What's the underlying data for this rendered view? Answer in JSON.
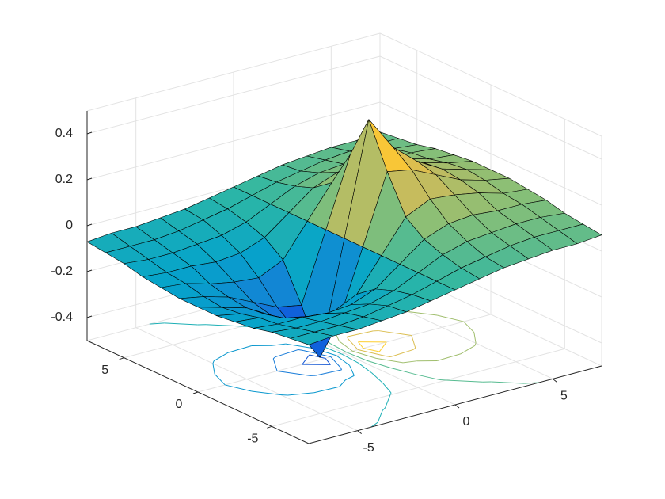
{
  "chart_data": {
    "type": "surface",
    "x": [
      -7.5,
      -6.25,
      -5,
      -3.75,
      -2.5,
      -1.25,
      0,
      1.25,
      2.5,
      3.75,
      5,
      6.25,
      7.5
    ],
    "y": [
      -7.5,
      -6.25,
      -5,
      -3.75,
      -2.5,
      -1.25,
      0,
      1.25,
      2.5,
      3.75,
      5,
      6.25,
      7.5
    ],
    "z": [
      [
        -0.07,
        -0.06,
        -0.06,
        -0.05,
        -0.04,
        -0.02,
        0,
        0.02,
        0.04,
        0.05,
        0.06,
        0.06,
        0.07
      ],
      [
        -0.08,
        -0.08,
        -0.08,
        -0.07,
        -0.05,
        -0.03,
        0,
        0.03,
        0.05,
        0.07,
        0.08,
        0.08,
        0.08
      ],
      [
        -0.09,
        -0.1,
        -0.1,
        -0.09,
        -0.08,
        -0.05,
        0,
        0.05,
        0.08,
        0.09,
        0.1,
        0.1,
        0.09
      ],
      [
        -0.11,
        -0.12,
        -0.12,
        -0.13,
        -0.12,
        -0.08,
        0,
        0.08,
        0.12,
        0.13,
        0.12,
        0.12,
        0.11
      ],
      [
        -0.12,
        -0.13,
        -0.16,
        -0.18,
        -0.19,
        -0.14,
        0,
        0.14,
        0.19,
        0.18,
        0.16,
        0.13,
        0.12
      ],
      [
        -0.13,
        -0.15,
        -0.18,
        -0.23,
        -0.28,
        -0.3,
        0,
        0.3,
        0.28,
        0.23,
        0.18,
        0.15,
        0.13
      ],
      [
        -0.13,
        -0.16,
        -0.19,
        -0.25,
        -0.34,
        -0.49,
        0,
        0.49,
        0.34,
        0.25,
        0.19,
        0.16,
        0.13
      ],
      [
        -0.13,
        -0.15,
        -0.18,
        -0.23,
        -0.28,
        -0.3,
        0,
        0.3,
        0.28,
        0.23,
        0.18,
        0.15,
        0.13
      ],
      [
        -0.12,
        -0.13,
        -0.16,
        -0.18,
        -0.19,
        -0.14,
        0,
        0.14,
        0.19,
        0.18,
        0.16,
        0.13,
        0.12
      ],
      [
        -0.11,
        -0.12,
        -0.12,
        -0.13,
        -0.12,
        -0.08,
        0,
        0.08,
        0.12,
        0.13,
        0.12,
        0.12,
        0.11
      ],
      [
        -0.09,
        -0.1,
        -0.1,
        -0.09,
        -0.08,
        -0.05,
        0,
        0.05,
        0.08,
        0.09,
        0.1,
        0.1,
        0.09
      ],
      [
        -0.08,
        -0.08,
        -0.08,
        -0.07,
        -0.05,
        -0.03,
        0,
        0.03,
        0.05,
        0.07,
        0.08,
        0.08,
        0.08
      ],
      [
        -0.07,
        -0.06,
        -0.06,
        -0.05,
        -0.04,
        -0.02,
        0,
        0.02,
        0.04,
        0.05,
        0.06,
        0.06,
        0.07
      ]
    ],
    "xlim": [
      -7.5,
      7.5
    ],
    "ylim": [
      -7.5,
      7.5
    ],
    "zlim": [
      -0.5,
      0.5
    ],
    "xticks": [
      -5,
      0,
      5
    ],
    "yticks": [
      -5,
      0,
      5
    ],
    "zticks": [
      -0.4,
      -0.2,
      0,
      0.2,
      0.4
    ],
    "colormap": [
      "#352a87",
      "#0f5cdd",
      "#1481d6",
      "#06a4ca",
      "#2eb7a4",
      "#87bf77",
      "#d1bb59",
      "#fec832",
      "#f9fb0e"
    ],
    "contour": true,
    "grid": true
  }
}
